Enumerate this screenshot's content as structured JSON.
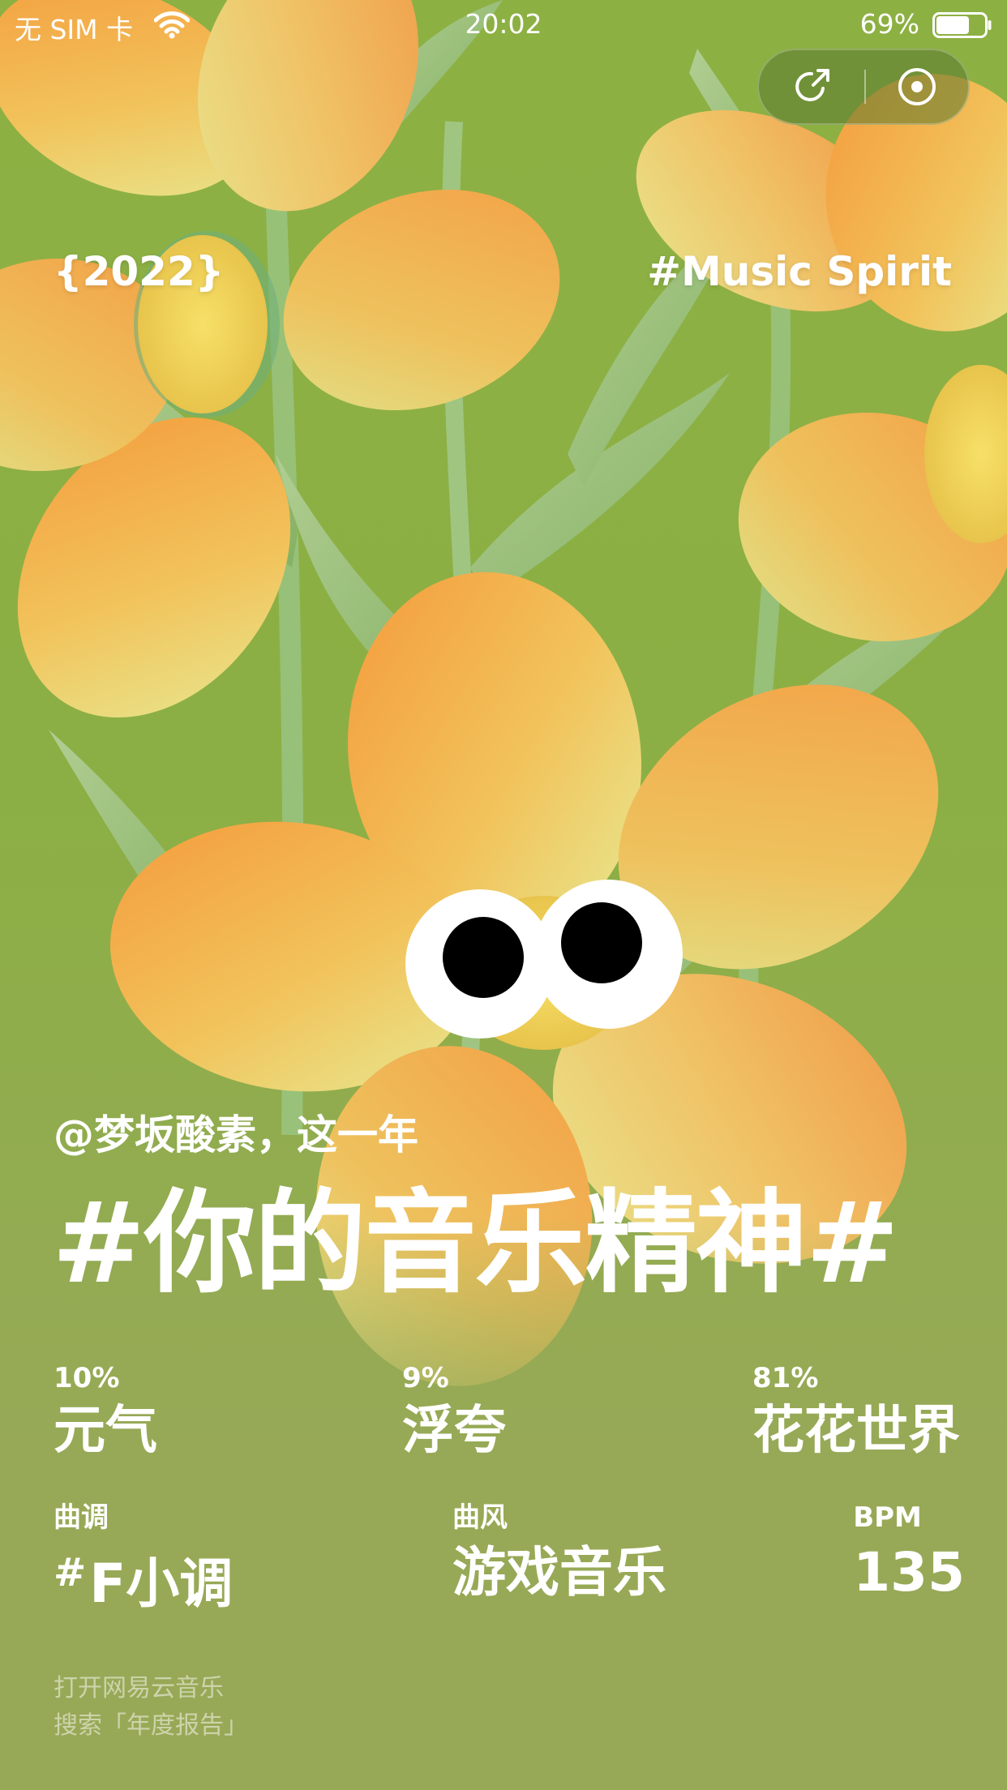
{
  "status_bar": {
    "carrier": "无 SIM 卡",
    "time": "20:02",
    "battery_percent": "69%",
    "battery_level": 0.69
  },
  "capsule": {
    "share_icon": "share-icon",
    "close_icon": "target-circle-icon"
  },
  "tags": {
    "year": "{2022}",
    "spirit": "#Music Spirit"
  },
  "report": {
    "greeting": "@梦坂酸素，这一年",
    "headline": "#你的音乐精神#",
    "moods": [
      {
        "percent": "10%",
        "name": "元气"
      },
      {
        "percent": "9%",
        "name": "浮夸"
      },
      {
        "percent": "81%",
        "name": "花花世界"
      }
    ],
    "key_label": "曲调",
    "key_hash": "#",
    "key_value": "F小调",
    "genre_label": "曲风",
    "genre_value": "游戏音乐",
    "bpm_label": "BPM",
    "bpm_value": "135"
  },
  "footer": {
    "line1": "打开网易云音乐",
    "line2": "搜索「年度报告」"
  },
  "colors": {
    "background": "#8db043",
    "petal_orange": "#f19a3e",
    "petal_yellow": "#e8df7a",
    "leaf": "#9fc27d"
  }
}
